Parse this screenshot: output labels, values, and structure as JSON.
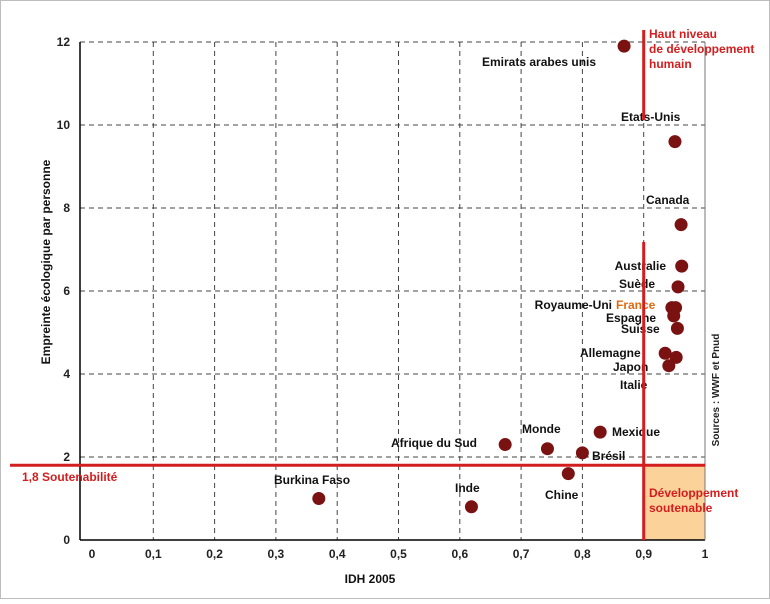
{
  "chart_data": {
    "type": "scatter",
    "xlabel": "IDH 2005",
    "ylabel": "Empreinte écologique par personne",
    "xlim": [
      0,
      1
    ],
    "ylim": [
      0,
      12
    ],
    "x_ticks": [
      "0",
      "0,1",
      "0,2",
      "0,3",
      "0,4",
      "0,5",
      "0,6",
      "0,7",
      "0,8",
      "0,9",
      "1"
    ],
    "y_ticks": [
      "0",
      "2",
      "4",
      "6",
      "8",
      "10",
      "12"
    ],
    "grid": true,
    "points": [
      {
        "label": "Emirats arabes unis",
        "x": 0.868,
        "y": 11.9
      },
      {
        "label": "Etats-Unis",
        "x": 0.951,
        "y": 9.6
      },
      {
        "label": "Canada",
        "x": 0.961,
        "y": 7.6
      },
      {
        "label": "Australie",
        "x": 0.962,
        "y": 6.6
      },
      {
        "label": "Suède",
        "x": 0.956,
        "y": 6.1
      },
      {
        "label": "Royaume-Uni",
        "x": 0.946,
        "y": 5.6
      },
      {
        "label": "France",
        "x": 0.952,
        "y": 5.6,
        "highlight": true
      },
      {
        "label": "Espagne",
        "x": 0.949,
        "y": 5.4
      },
      {
        "label": "Suisse",
        "x": 0.955,
        "y": 5.1
      },
      {
        "label": "Allemagne",
        "x": 0.935,
        "y": 4.5
      },
      {
        "label": "Japon",
        "x": 0.953,
        "y": 4.4
      },
      {
        "label": "Italie",
        "x": 0.941,
        "y": 4.2
      },
      {
        "label": "Mexique",
        "x": 0.829,
        "y": 2.6
      },
      {
        "label": "Monde",
        "x": 0.743,
        "y": 2.2
      },
      {
        "label": "Afrique du Sud",
        "x": 0.674,
        "y": 2.3
      },
      {
        "label": "Brésil",
        "x": 0.8,
        "y": 2.1
      },
      {
        "label": "Chine",
        "x": 0.777,
        "y": 1.6
      },
      {
        "label": "Inde",
        "x": 0.619,
        "y": 0.8
      },
      {
        "label": "Burkina Faso",
        "x": 0.37,
        "y": 1.0
      }
    ],
    "thresholds": {
      "hdi": 0.9,
      "footprint": 1.8
    },
    "annotations": {
      "high_development": "Haut niveau de développement humain",
      "sustainability_line": "1,8 Soutenabilité",
      "sustainable_development": "Développement soutenable",
      "source": "Sources : WWF et Pnud"
    },
    "colors": {
      "point": "#7b1212",
      "highlight_label": "#e06a10",
      "threshold": "#d21e1e",
      "sustainable_zone": "#fbd39a",
      "grid": "#444444"
    }
  }
}
